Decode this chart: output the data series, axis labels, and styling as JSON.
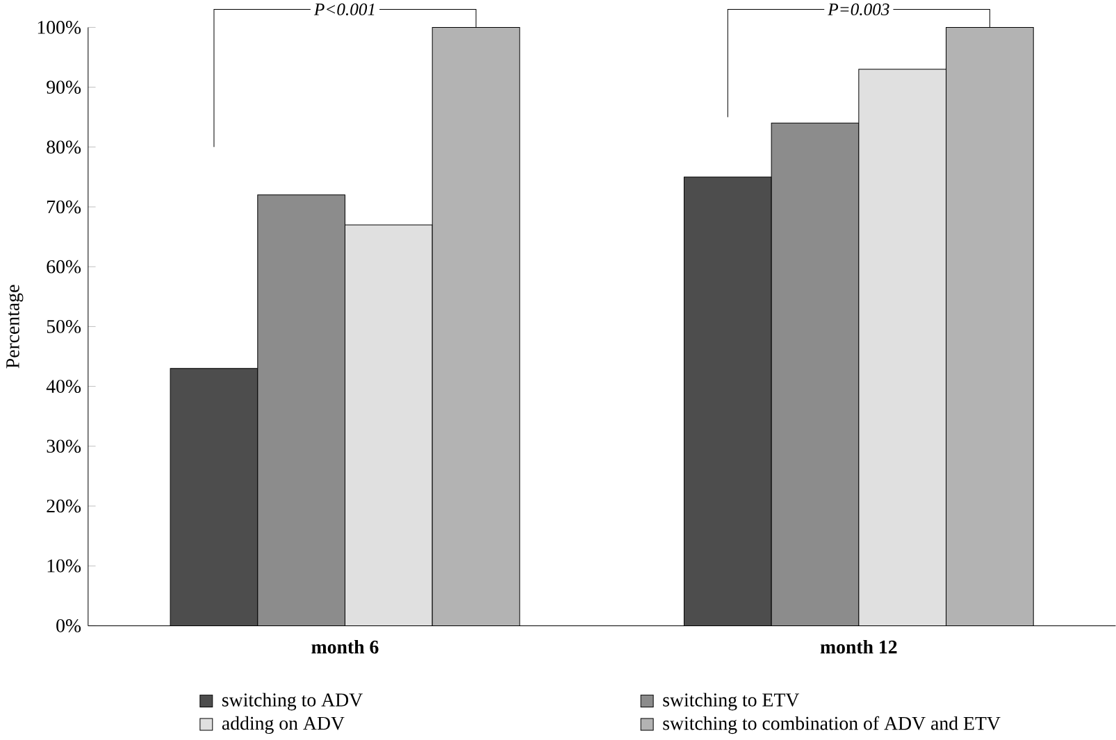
{
  "chart_data": {
    "type": "bar",
    "ylabel": "Percentage",
    "categories": [
      "month 6",
      "month 12"
    ],
    "series": [
      {
        "name": "switching to ADV",
        "color": "#4d4d4d",
        "values": [
          43,
          75
        ]
      },
      {
        "name": "switching to ETV",
        "color": "#8c8c8c",
        "values": [
          72,
          84
        ]
      },
      {
        "name": "adding on ADV",
        "color": "#e0e0e0",
        "values": [
          67,
          93
        ]
      },
      {
        "name": "switching to combination of ADV and ETV",
        "color": "#b3b3b3",
        "values": [
          100,
          100
        ]
      }
    ],
    "ylim": [
      0,
      100
    ],
    "yticks": [
      {
        "value": 0,
        "label": "0%"
      },
      {
        "value": 10,
        "label": "10%"
      },
      {
        "value": 20,
        "label": "20%"
      },
      {
        "value": 30,
        "label": "30%"
      },
      {
        "value": 40,
        "label": "40%"
      },
      {
        "value": 50,
        "label": "50%"
      },
      {
        "value": 60,
        "label": "60%"
      },
      {
        "value": 70,
        "label": "70%"
      },
      {
        "value": 80,
        "label": "80%"
      },
      {
        "value": 90,
        "label": "90%"
      },
      {
        "value": 100,
        "label": "100%"
      }
    ],
    "annotations": [
      "P<0.001",
      "P=0.003"
    ],
    "grid": false,
    "legend": "bottom"
  }
}
